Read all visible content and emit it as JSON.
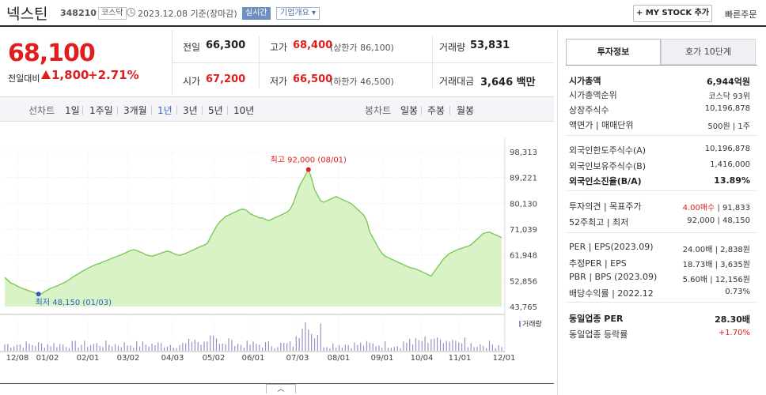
{
  "header": {
    "stock_name": "넥스틴",
    "stock_code": "348210",
    "market_tag": "코스닥",
    "date_text": "2023.12.08  기준(장마감)",
    "realtime_label": "실시간",
    "corp_overview_label": "기업개요 ▾",
    "mystock_label": "+ MY STOCK 추가",
    "quick_order_label": "빠른주문"
  },
  "price": {
    "current": "68,100",
    "prev_label": "전일대비",
    "change": "1,800",
    "change_pct": "+2.71%"
  },
  "stats": {
    "prev_close": {
      "label": "전일",
      "value": "66,300"
    },
    "high": {
      "label": "고가",
      "value": "68,400",
      "sub": "(상한가 86,100)"
    },
    "volume": {
      "label": "거래량",
      "value": "53,831"
    },
    "open": {
      "label": "시가",
      "value": "67,200"
    },
    "low": {
      "label": "저가",
      "value": "66,500",
      "sub": "(하한가 46,500)"
    },
    "trade_value": {
      "label": "거래대금",
      "value": "3,646 백만"
    }
  },
  "period_bar": {
    "line_label": "선차트",
    "periods": [
      "1일",
      "1주일",
      "3개월",
      "1년",
      "3년",
      "5년",
      "10년"
    ],
    "selected": "1년",
    "candle_label": "봉차트",
    "candles": [
      "일봉",
      "주봉",
      "월봉"
    ]
  },
  "chart_data": {
    "type": "area",
    "ylim": [
      43765,
      98313
    ],
    "y_ticks": [
      "98,313",
      "89,221",
      "80,130",
      "71,039",
      "61,948",
      "52,856",
      "43,765"
    ],
    "x_labels": [
      "12/08",
      "01/02",
      "02/01",
      "03/02",
      "04/03",
      "05/02",
      "06/01",
      "07/03",
      "08/01",
      "09/01",
      "10/04",
      "11/01",
      "12/01"
    ],
    "high_annotation": "최고 92,000 (08/01)",
    "low_annotation": "최저 48,150 (01/03)",
    "volume_label": "거래량",
    "line_color": "#7cc85a",
    "fill_color": "#d9f3c6",
    "price_series": [
      54000,
      53000,
      52000,
      51600,
      51000,
      50500,
      50000,
      49700,
      49300,
      48900,
      48500,
      48150,
      48300,
      49000,
      49600,
      50200,
      50600,
      51000,
      51500,
      52000,
      52500,
      53200,
      54000,
      54700,
      55300,
      56000,
      56600,
      57200,
      57700,
      58200,
      58700,
      59000,
      59500,
      59900,
      60300,
      60800,
      61200,
      61600,
      62000,
      62500,
      63000,
      63500,
      63800,
      63500,
      63000,
      62600,
      62000,
      61700,
      61500,
      61800,
      62200,
      62600,
      63000,
      63300,
      63000,
      62500,
      62000,
      61800,
      62100,
      62500,
      63000,
      63500,
      64000,
      64500,
      65000,
      65400,
      66000,
      68000,
      70000,
      72000,
      73500,
      74500,
      75500,
      76000,
      76500,
      77000,
      77500,
      78000,
      78000,
      77500,
      76500,
      76000,
      75500,
      75000,
      75000,
      74500,
      74000,
      74500,
      75000,
      75500,
      76000,
      76500,
      77000,
      78000,
      80000,
      83000,
      86000,
      88000,
      90000,
      92000,
      89000,
      85000,
      83000,
      81000,
      80500,
      81000,
      81500,
      82000,
      82500,
      82000,
      81500,
      81000,
      80500,
      80000,
      79000,
      78000,
      77000,
      76000,
      74000,
      70000,
      68000,
      66000,
      64000,
      62500,
      61500,
      61000,
      60500,
      60000,
      59500,
      59000,
      58500,
      58000,
      57500,
      57200,
      57000,
      56500,
      56000,
      55500,
      55000,
      54500,
      56000,
      57500,
      59000,
      60500,
      61500,
      62500,
      63000,
      63500,
      64000,
      64300,
      64700,
      65000,
      65500,
      66500,
      67500,
      68500,
      69500,
      69800,
      70000,
      69500,
      69000,
      68500,
      68100
    ]
  },
  "right_panel": {
    "tab_active": "투자정보",
    "tab_inactive": "호가 10단계",
    "rows": [
      {
        "k": "시가총액",
        "v": "6,944억원",
        "bold": true
      },
      {
        "k": "시가총액순위",
        "v": "코스닥 93위"
      },
      {
        "k": "상장주식수",
        "v": "10,196,878"
      },
      {
        "k": "액면가 | 매매단위",
        "v": "500원 | 1주"
      },
      {
        "k": "외국인한도주식수(A)",
        "v": "10,196,878"
      },
      {
        "k": "외국인보유주식수(B)",
        "v": "1,416,000"
      },
      {
        "k": "외국인소진율(B/A)",
        "v": "13.89%",
        "bold": true
      },
      {
        "k": "투자의견 | 목표주가",
        "v1": "4.00매수",
        "v2": " | 91,833"
      },
      {
        "k": "52주최고 | 최저",
        "v": "92,000 | 48,150"
      },
      {
        "k": "PER | EPS(2023.09)",
        "v": "24.00배 | 2,838원"
      },
      {
        "k": "추정PER | EPS",
        "v": "18.73배 | 3,635원"
      },
      {
        "k": "PBR | BPS (2023.09)",
        "v": "5.60배 | 12,156원"
      },
      {
        "k": "배당수익률 | 2022.12",
        "v": "0.73%"
      },
      {
        "k": "동일업종 PER",
        "v": "28.30배",
        "bold": true
      },
      {
        "k": "동일업종 등락률",
        "v": "+1.70%",
        "red": true
      }
    ]
  }
}
